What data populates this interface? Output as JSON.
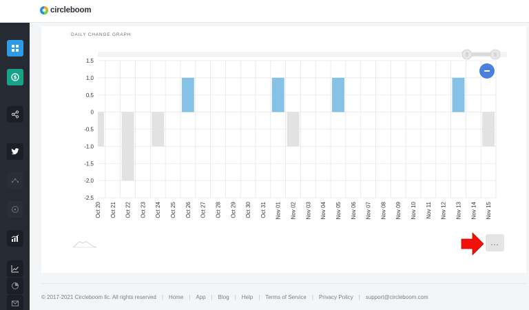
{
  "brand": {
    "name": "circleboom"
  },
  "sidebar": {
    "items": [
      {
        "name": "dashboard-icon",
        "color": "#2f9be6"
      },
      {
        "name": "dollar-icon",
        "color": "#16a389"
      },
      {
        "name": "share-icon"
      },
      {
        "name": "twitter-icon"
      },
      {
        "name": "network-icon"
      },
      {
        "name": "circle-plus-icon"
      },
      {
        "name": "analytics-icon"
      },
      {
        "name": "line-chart-icon"
      },
      {
        "name": "pie-chart-icon"
      },
      {
        "name": "inbox-icon"
      }
    ]
  },
  "card": {
    "chart_title": "DAILY CHANGE GRAPH",
    "more_label": "..."
  },
  "chart_data": {
    "type": "bar",
    "categories": [
      "Oct 20",
      "Oct 21",
      "Oct 22",
      "Oct 23",
      "Oct 24",
      "Oct 25",
      "Oct 26",
      "Oct 27",
      "Oct 28",
      "Oct 29",
      "Oct 30",
      "Oct 31",
      "Nov 01",
      "Nov 02",
      "Nov 03",
      "Nov 04",
      "Nov 05",
      "Nov 06",
      "Nov 07",
      "Nov 08",
      "Nov 09",
      "Nov 10",
      "Nov 11",
      "Nov 12",
      "Nov 13",
      "Nov 14",
      "Nov 15"
    ],
    "values": [
      -1,
      0,
      -2,
      0,
      -1,
      0,
      1,
      0,
      0,
      0,
      0,
      0,
      1,
      -1,
      0,
      0,
      1,
      0,
      0,
      0,
      0,
      0,
      0,
      0,
      1,
      0,
      -1
    ],
    "title": "DAILY CHANGE GRAPH",
    "y_ticks": [
      "1.5",
      "1.0",
      "0.5",
      "0",
      "-0.5",
      "-1.0",
      "-1.5",
      "-2.0",
      "-2.5"
    ],
    "ylim": [
      -2.5,
      1.5
    ],
    "grid": true,
    "positive_color": "#86c2e6",
    "negative_color": "#e2e2e2"
  },
  "footer": {
    "copyright": "© 2017-2021 Circleboom llc. All rights reserved",
    "links": [
      "Home",
      "App",
      "Blog",
      "Help",
      "Terms of Service",
      "Privacy Policy",
      "support@circleboom.com"
    ]
  }
}
